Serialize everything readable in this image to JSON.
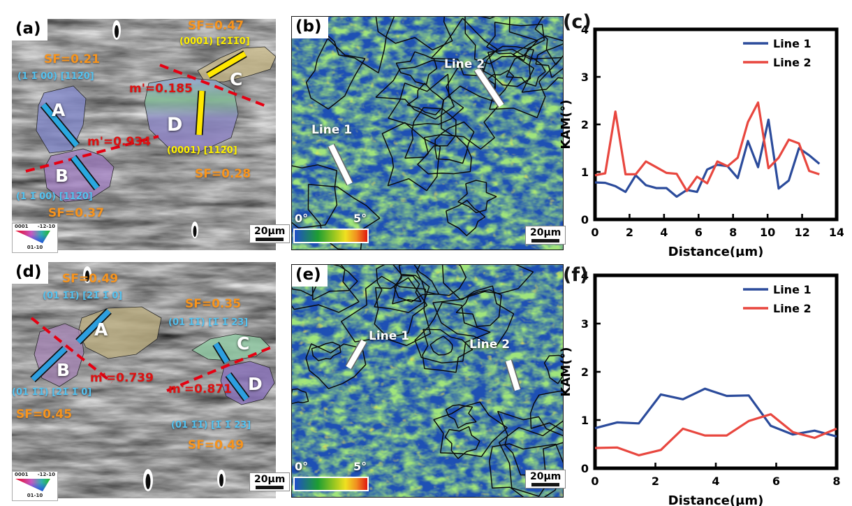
{
  "colors": {
    "sf_label": "#F7941D",
    "cyan_label": "#54C2EE",
    "yellow_label": "#FFF100",
    "m_prime_label": "#DD1111",
    "slip_trace_cyan": "#29A8E0",
    "slip_trace_yellow": "#FFE800",
    "dashed_line_red": "#E60012",
    "line1": "#2B4B9B",
    "line2": "#E8473F"
  },
  "panel_a": {
    "label": "(a)",
    "annotations": {
      "sf_a": "SF=0.21",
      "plane_a": "(1 1̅ 00) [112̅0]",
      "m_ab": "m'=0.934",
      "plane_b": "(1 1̅ 00) [112̅0]",
      "sf_b": "SF=0.37",
      "sf_c": "SF=0.47",
      "plane_c": "(0001) [21̅1̅0]",
      "m_cd": "m'=0.185",
      "plane_d": "(0001) [112̅0]",
      "sf_d": "SF=0.28"
    },
    "grains": {
      "a": "A",
      "b": "B",
      "c": "C",
      "d": "D"
    },
    "scale_bar": "20µm",
    "ipf_legend": {
      "corner_top_left": "0001",
      "corner_top_right": "-12-10",
      "corner_bottom": "01-10"
    }
  },
  "panel_b": {
    "label": "(b)",
    "line_1": "Line 1",
    "line_2": "Line 2",
    "kam_scale_min": "0°",
    "kam_scale_max": "5°",
    "scale_bar": "20µm"
  },
  "panel_d": {
    "label": "(d)",
    "annotations": {
      "sf_a": "SF=0.49",
      "plane_a": "(01 1̅1̅) [21̅ 1̅ 0]",
      "m_ab": "m'=0.739",
      "plane_b": "(01 1̅1̅) [21̅ 1̅ 0]",
      "sf_b": "SF=0.45",
      "sf_c": "SF=0.35",
      "plane_c": "(01 1̅1̅) [1̅ 1̅ 23]",
      "m_cd": "m'=0.871",
      "plane_d": "(01 1̅1̅) [1̅ 1̅ 23]",
      "sf_d": "SF=0.49"
    },
    "grains": {
      "a": "A",
      "b": "B",
      "c": "C",
      "d": "D"
    },
    "scale_bar": "20µm",
    "ipf_legend": {
      "corner_top_left": "0001",
      "corner_top_right": "-12-10",
      "corner_bottom": "01-10"
    }
  },
  "panel_e": {
    "label": "(e)",
    "line_1": "Line 1",
    "line_2": "Line 2",
    "kam_scale_min": "0°",
    "kam_scale_max": "5°",
    "scale_bar": "20µm"
  },
  "chart_data": [
    {
      "panel_label": "(c)",
      "type": "line",
      "xlabel": "Distance(μm)",
      "ylabel": "KAM(°)",
      "xlim": [
        0,
        14
      ],
      "ylim": [
        0,
        4
      ],
      "xticks": [
        0,
        2,
        4,
        6,
        8,
        10,
        12,
        14
      ],
      "yticks": [
        0,
        1,
        2,
        3,
        4
      ],
      "grid": false,
      "legend_position": "top-right",
      "x": [
        0,
        0.59,
        1.18,
        1.77,
        2.36,
        2.95,
        3.55,
        4.14,
        4.73,
        5.32,
        5.91,
        6.5,
        7.09,
        7.68,
        8.27,
        8.86,
        9.45,
        10.05,
        10.64,
        11.23,
        11.82,
        12.41,
        13.0
      ],
      "series": [
        {
          "name": "Line 1",
          "color": "#2B4B9B",
          "values": [
            0.78,
            0.77,
            0.7,
            0.58,
            0.93,
            0.72,
            0.66,
            0.66,
            0.48,
            0.62,
            0.58,
            1.05,
            1.15,
            1.12,
            0.87,
            1.65,
            1.1,
            2.1,
            0.65,
            0.82,
            1.5,
            1.35,
            1.17
          ]
        },
        {
          "name": "Line 2",
          "color": "#E8473F",
          "values": [
            0.93,
            0.97,
            2.27,
            0.95,
            0.95,
            1.22,
            1.1,
            0.98,
            0.96,
            0.6,
            0.9,
            0.76,
            1.22,
            1.12,
            1.3,
            2.05,
            2.46,
            1.08,
            1.3,
            1.68,
            1.6,
            1.02,
            0.95
          ]
        }
      ]
    },
    {
      "panel_label": "(f)",
      "type": "line",
      "xlabel": "Distance(μm)",
      "ylabel": "KAM(°)",
      "xlim": [
        0,
        8
      ],
      "ylim": [
        0,
        4
      ],
      "xticks": [
        0,
        2,
        4,
        6,
        8
      ],
      "yticks": [
        0,
        1,
        2,
        3,
        4
      ],
      "grid": false,
      "legend_position": "top-right",
      "x": [
        0,
        0.73,
        1.45,
        2.18,
        2.91,
        3.64,
        4.36,
        5.09,
        5.82,
        6.55,
        7.27,
        8.0
      ],
      "series": [
        {
          "name": "Line 1",
          "color": "#2B4B9B",
          "values": [
            0.83,
            0.95,
            0.93,
            1.53,
            1.43,
            1.65,
            1.5,
            1.51,
            0.88,
            0.7,
            0.78,
            0.66
          ]
        },
        {
          "name": "Line 2",
          "color": "#E8473F",
          "values": [
            0.42,
            0.43,
            0.27,
            0.38,
            0.82,
            0.68,
            0.68,
            0.98,
            1.12,
            0.75,
            0.63,
            0.82
          ]
        }
      ]
    }
  ]
}
